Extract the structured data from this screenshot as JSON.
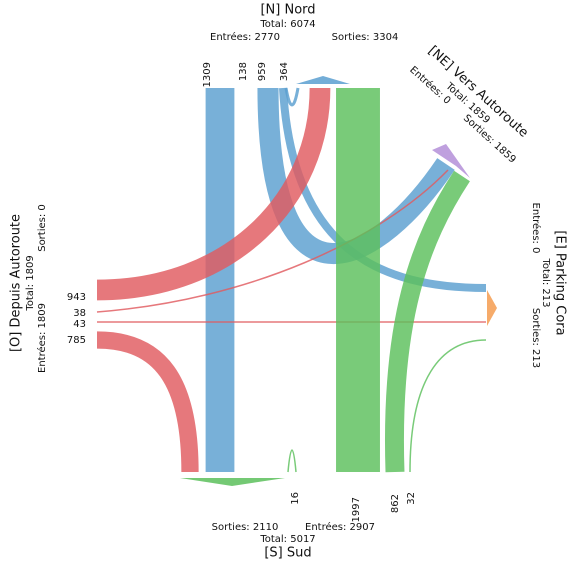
{
  "arms": [
    {
      "label": "[N] Nord",
      "total": "Total: 6074",
      "in": "Entrées: 2770",
      "out": "Sorties: 3304",
      "color": "#5a9fd0",
      "flows": [
        1309,
        138,
        959,
        364
      ]
    },
    {
      "label": "[NE] Vers Autoroute",
      "total": "Total: 1859",
      "in": "Entrées: 0",
      "out": "Sorties: 1859"
    },
    {
      "label": "[E] Parking Cora",
      "total": "Total: 213",
      "in": "Entrées: 0",
      "out": "Sorties: 213"
    },
    {
      "label": "[S] Sud",
      "total": "Total: 5017",
      "in": "Entrées: 2907",
      "out": "Sorties: 2110",
      "color": "#5cbf5c",
      "flows": [
        16,
        1997,
        862,
        32
      ]
    },
    {
      "label": "[O] Depuis Autoroute",
      "total": "Total: 1809",
      "in": "Entrées: 1809",
      "out": "Sorties: 0",
      "color": "#e05a5f",
      "flows": [
        943,
        38,
        43,
        785
      ]
    }
  ]
}
